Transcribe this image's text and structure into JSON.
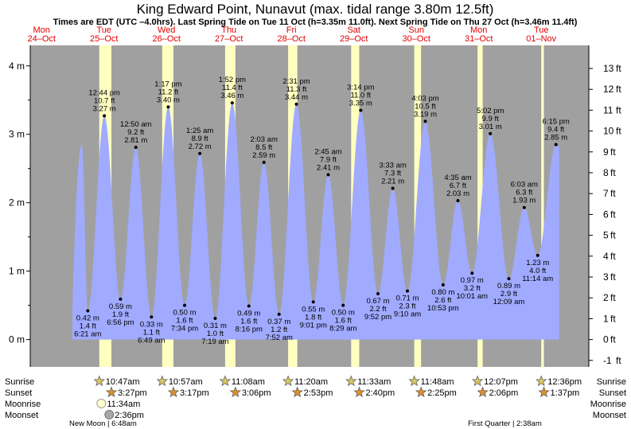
{
  "header": {
    "title": "King Edward Point, Nunavut (max. tidal range 3.80m 12.5ft)",
    "subtitle": "Times are EDT (UTC –4.0hrs). Last Spring Tide on Tue 11 Oct (h=3.35m 11.0ft). Next Spring Tide on Thu 27 Oct (h=3.46m 11.4ft)"
  },
  "colors": {
    "background": "#a0a0a0",
    "tide_fill": "#a0aaff",
    "daylight": "#ffffc0",
    "day_label": "#e00000"
  },
  "days": [
    {
      "dow": "Mon",
      "date": "24–Oct"
    },
    {
      "dow": "Tue",
      "date": "25–Oct"
    },
    {
      "dow": "Wed",
      "date": "26–Oct"
    },
    {
      "dow": "Thu",
      "date": "27–Oct"
    },
    {
      "dow": "Fri",
      "date": "28–Oct"
    },
    {
      "dow": "Sat",
      "date": "29–Oct"
    },
    {
      "dow": "Sun",
      "date": "30–Oct"
    },
    {
      "dow": "Mon",
      "date": "31–Oct"
    },
    {
      "dow": "Tue",
      "date": "01–Nov"
    }
  ],
  "chart_data": {
    "type": "area",
    "ylabel_left": "m",
    "ylabel_right": "ft",
    "ylim_m": [
      -0.4,
      4.3
    ],
    "yticks_left": [
      "0 m",
      "1 m",
      "2 m",
      "3 m",
      "4 m"
    ],
    "yticks_right": [
      "-1 ft",
      "0 ft",
      "1 ft",
      "2 ft",
      "3 ft",
      "4 ft",
      "5 ft",
      "6 ft",
      "7 ft",
      "8 ft",
      "9 ft",
      "10 ft",
      "11 ft",
      "12 ft",
      "13 ft"
    ],
    "tides": [
      {
        "type": "high",
        "day": 0,
        "time": "",
        "height_m": 2.85,
        "labels": []
      },
      {
        "type": "low",
        "day": 1,
        "time": "6:21 am",
        "height_m": 0.42,
        "labels": [
          "0.42 m",
          "1.4 ft",
          "6:21 am"
        ]
      },
      {
        "type": "high",
        "day": 1,
        "time": "12:44 pm",
        "height_m": 3.27,
        "labels": [
          "12:44 pm",
          "10.7 ft",
          "3.27 m"
        ]
      },
      {
        "type": "low",
        "day": 1,
        "time": "6:56 pm",
        "height_m": 0.59,
        "labels": [
          "0.59 m",
          "1.9 ft",
          "6:56 pm"
        ]
      },
      {
        "type": "high",
        "day": 2,
        "time": "12:50 am",
        "height_m": 2.81,
        "labels": [
          "12:50 am",
          "9.2 ft",
          "2.81 m"
        ]
      },
      {
        "type": "low",
        "day": 2,
        "time": "6:49 am",
        "height_m": 0.33,
        "labels": [
          "0.33 m",
          "1.1 ft",
          "6:49 am"
        ]
      },
      {
        "type": "high",
        "day": 2,
        "time": "1:17 pm",
        "height_m": 3.4,
        "labels": [
          "1:17 pm",
          "11.2 ft",
          "3.40 m"
        ]
      },
      {
        "type": "low",
        "day": 2,
        "time": "7:34 pm",
        "height_m": 0.5,
        "labels": [
          "0.50 m",
          "1.6 ft",
          "7:34 pm"
        ]
      },
      {
        "type": "high",
        "day": 3,
        "time": "1:25 am",
        "height_m": 2.72,
        "labels": [
          "1:25 am",
          "8.9 ft",
          "2.72 m"
        ]
      },
      {
        "type": "low",
        "day": 3,
        "time": "7:19 am",
        "height_m": 0.31,
        "labels": [
          "0.31 m",
          "1.0 ft",
          "7:19 am"
        ]
      },
      {
        "type": "high",
        "day": 3,
        "time": "1:52 pm",
        "height_m": 3.46,
        "labels": [
          "1:52 pm",
          "11.4 ft",
          "3.46 m"
        ]
      },
      {
        "type": "low",
        "day": 3,
        "time": "8:16 pm",
        "height_m": 0.49,
        "labels": [
          "0.49 m",
          "1.6 ft",
          "8:16 pm"
        ]
      },
      {
        "type": "high",
        "day": 4,
        "time": "2:03 am",
        "height_m": 2.59,
        "labels": [
          "2:03 am",
          "8.5 ft",
          "2.59 m"
        ]
      },
      {
        "type": "low",
        "day": 4,
        "time": "7:52 am",
        "height_m": 0.37,
        "labels": [
          "0.37 m",
          "1.2 ft",
          "7:52 am"
        ]
      },
      {
        "type": "high",
        "day": 4,
        "time": "2:31 pm",
        "height_m": 3.44,
        "labels": [
          "2:31 pm",
          "11.3 ft",
          "3.44 m"
        ]
      },
      {
        "type": "low",
        "day": 4,
        "time": "9:01 pm",
        "height_m": 0.55,
        "labels": [
          "0.55 m",
          "1.8 ft",
          "9:01 pm"
        ]
      },
      {
        "type": "high",
        "day": 5,
        "time": "2:45 am",
        "height_m": 2.41,
        "labels": [
          "2:45 am",
          "7.9 ft",
          "2.41 m"
        ]
      },
      {
        "type": "low",
        "day": 5,
        "time": "8:29 am",
        "height_m": 0.5,
        "labels": [
          "0.50 m",
          "1.6 ft",
          "8:29 am"
        ]
      },
      {
        "type": "high",
        "day": 5,
        "time": "3:14 pm",
        "height_m": 3.35,
        "labels": [
          "3:14 pm",
          "11.0 ft",
          "3.35 m"
        ]
      },
      {
        "type": "low",
        "day": 5,
        "time": "9:52 pm",
        "height_m": 0.67,
        "labels": [
          "0.67 m",
          "2.2 ft",
          "9:52 pm"
        ]
      },
      {
        "type": "high",
        "day": 6,
        "time": "3:33 am",
        "height_m": 2.21,
        "labels": [
          "3:33 am",
          "7.3 ft",
          "2.21 m"
        ]
      },
      {
        "type": "low",
        "day": 6,
        "time": "9:10 am",
        "height_m": 0.71,
        "labels": [
          "0.71 m",
          "2.3 ft",
          "9:10 am"
        ]
      },
      {
        "type": "high",
        "day": 6,
        "time": "4:03 pm",
        "height_m": 3.19,
        "labels": [
          "4:03 pm",
          "10.5 ft",
          "3.19 m"
        ]
      },
      {
        "type": "low",
        "day": 6,
        "time": "10:53 pm",
        "height_m": 0.8,
        "labels": [
          "0.80 m",
          "2.6 ft",
          "10:53 pm"
        ]
      },
      {
        "type": "high",
        "day": 7,
        "time": "4:35 am",
        "height_m": 2.03,
        "labels": [
          "4:35 am",
          "6.7 ft",
          "2.03 m"
        ]
      },
      {
        "type": "low",
        "day": 7,
        "time": "10:01 am",
        "height_m": 0.97,
        "labels": [
          "0.97 m",
          "3.2 ft",
          "10:01 am"
        ]
      },
      {
        "type": "high",
        "day": 7,
        "time": "5:02 pm",
        "height_m": 3.01,
        "labels": [
          "5:02 pm",
          "9.9 ft",
          "3.01 m"
        ]
      },
      {
        "type": "low",
        "day": 8,
        "time": "12:09 am",
        "height_m": 0.89,
        "labels": [
          "0.89 m",
          "2.9 ft",
          "12:09 am"
        ]
      },
      {
        "type": "high",
        "day": 8,
        "time": "6:03 am",
        "height_m": 1.93,
        "labels": [
          "6:03 am",
          "6.3 ft",
          "1.93 m"
        ]
      },
      {
        "type": "low",
        "day": 8,
        "time": "11:14 am",
        "height_m": 1.23,
        "labels": [
          "1.23 m",
          "4.0 ft",
          "11:14 am"
        ]
      },
      {
        "type": "high",
        "day": 8,
        "time": "6:15 pm",
        "height_m": 2.85,
        "labels": [
          "6:15 pm",
          "9.4 ft",
          "2.85 m"
        ]
      }
    ]
  },
  "rows": {
    "sunrise": "Sunrise",
    "sunset": "Sunset",
    "moonrise": "Moonrise",
    "moonset": "Moonset"
  },
  "sun": [
    {
      "day": 1,
      "sunrise": "10:47am",
      "sunset": "3:27pm"
    },
    {
      "day": 2,
      "sunrise": "10:57am",
      "sunset": "3:17pm"
    },
    {
      "day": 3,
      "sunrise": "11:08am",
      "sunset": "3:06pm"
    },
    {
      "day": 4,
      "sunrise": "11:20am",
      "sunset": "2:53pm"
    },
    {
      "day": 5,
      "sunrise": "11:33am",
      "sunset": "2:40pm"
    },
    {
      "day": 6,
      "sunrise": "11:48am",
      "sunset": "2:25pm"
    },
    {
      "day": 7,
      "sunrise": "12:07pm",
      "sunset": "2:06pm"
    },
    {
      "day": 8,
      "sunrise": "12:36pm",
      "sunset": "1:37pm"
    }
  ],
  "moon": {
    "moonrise": "11:34am",
    "moonset": "2:36pm",
    "new_moon": "New Moon | 6:48am",
    "first_quarter": "First Quarter | 2:38am"
  }
}
